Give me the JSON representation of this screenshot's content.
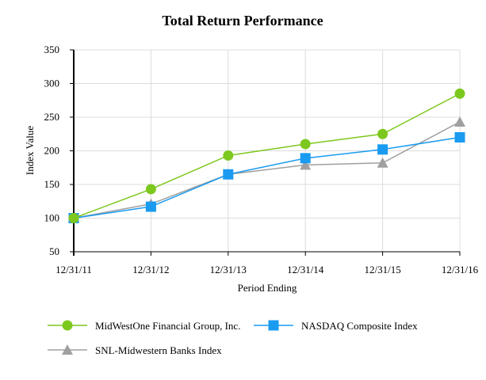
{
  "chart_data": {
    "type": "line",
    "title": "Total Return Performance",
    "xlabel": "Period Ending",
    "ylabel": "Index Value",
    "categories": [
      "12/31/11",
      "12/31/12",
      "12/31/13",
      "12/31/14",
      "12/31/15",
      "12/31/16"
    ],
    "ylim": [
      50,
      350
    ],
    "yticks": [
      50,
      100,
      150,
      200,
      250,
      300,
      350
    ],
    "grid": true,
    "legend_position": "bottom",
    "series": [
      {
        "name": "MidWestOne Financial Group, Inc.",
        "marker": "circle",
        "color": "#7dc81e",
        "values": [
          100,
          143,
          193,
          210,
          225,
          285
        ]
      },
      {
        "name": "NASDAQ Composite Index",
        "marker": "square",
        "color": "#1a9bf0",
        "values": [
          100,
          117,
          165,
          189,
          202,
          220
        ]
      },
      {
        "name": "SNL-Midwestern Banks Index",
        "marker": "triangle",
        "color": "#a0a0a0",
        "values": [
          100,
          121,
          165,
          179,
          182,
          243
        ]
      }
    ]
  }
}
